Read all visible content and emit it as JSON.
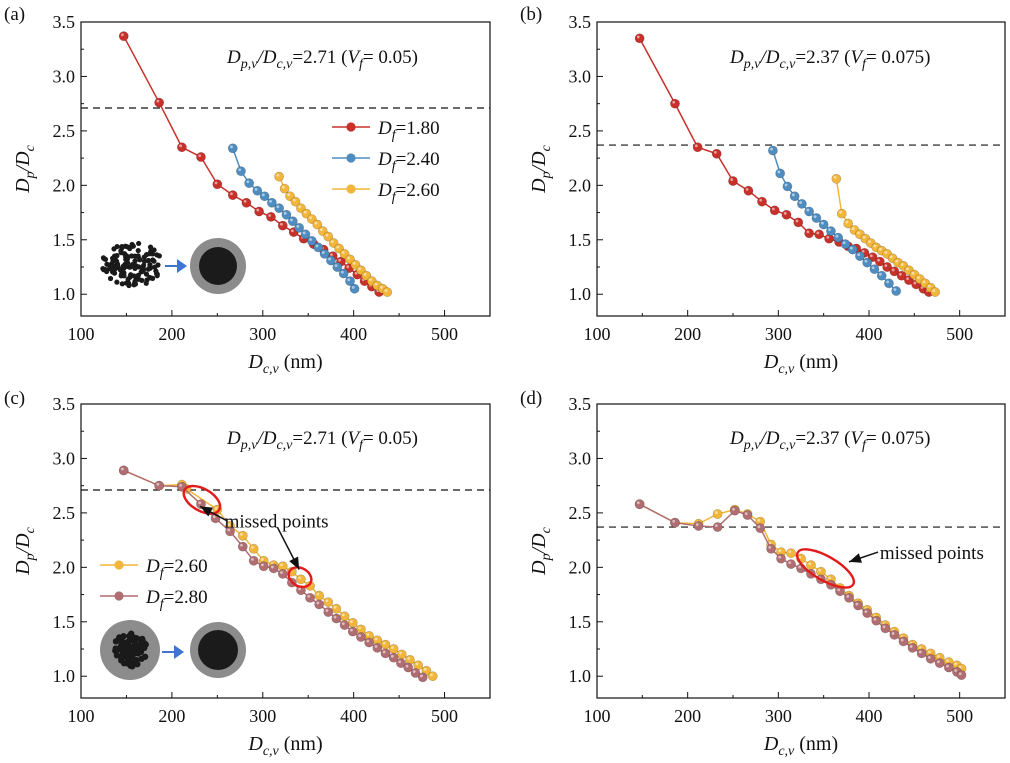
{
  "colors": {
    "Df_1.80": "#c8302a",
    "Df_2.40": "#4f8dc0",
    "Df_2.60": "#f2b63b",
    "Df_2.80": "#b06e72",
    "dashed": "#111111",
    "ellipse": "#e11b1b",
    "arrow_insert": "#3f74d1"
  },
  "chart_data": [
    {
      "panel": "(a)",
      "type": "line",
      "xlabel_main": "D",
      "xlabel_sub": "c,v",
      "xlabel_unit": " (nm)",
      "ylabel_main": "D",
      "ylabel_sub1": "p",
      "ylabel_mid": "/D",
      "ylabel_sub2": "c",
      "xlim": [
        100,
        550
      ],
      "ylim": [
        0.8,
        3.5
      ],
      "xticks": [
        100,
        200,
        300,
        400,
        500
      ],
      "yticks": [
        1.0,
        1.5,
        2.0,
        2.5,
        3.0,
        3.5
      ],
      "ytick_labels": [
        "1.0",
        "1.5",
        "2.0",
        "2.5",
        "3.0",
        "3.5"
      ],
      "hline": 2.71,
      "annotation": {
        "p1": "D",
        "s1": "p,v",
        "p2": "/D",
        "s2": "c,v",
        "p3": "=2.71 (",
        "p4": "V",
        "s3": "f",
        "p5": "= 0.05)"
      },
      "legend": [
        {
          "main": "D",
          "sub": "f",
          "val": "=1.80",
          "color": "#c8302a"
        },
        {
          "main": "D",
          "sub": "f",
          "val": "=2.40",
          "color": "#4f8dc0"
        },
        {
          "main": "D",
          "sub": "f",
          "val": "=2.60",
          "color": "#f2b63b"
        }
      ],
      "insert": "aggregate-to-sphere",
      "series": [
        {
          "name": "Df=1.80",
          "color": "#c8302a",
          "x": [
            147,
            186,
            211,
            232,
            250,
            267,
            282,
            296,
            309,
            322,
            334,
            345,
            356,
            367,
            377,
            386,
            395,
            404,
            412,
            420,
            428
          ],
          "y": [
            3.37,
            2.76,
            2.35,
            2.26,
            2.01,
            1.91,
            1.84,
            1.76,
            1.71,
            1.63,
            1.57,
            1.51,
            1.46,
            1.41,
            1.35,
            1.3,
            1.24,
            1.18,
            1.12,
            1.07,
            1.02
          ]
        },
        {
          "name": "Df=2.40",
          "color": "#4f8dc0",
          "x": [
            267,
            276,
            285,
            294,
            302,
            310,
            318,
            326,
            333,
            340,
            347,
            354,
            361,
            368,
            375,
            382,
            389,
            396,
            401
          ],
          "y": [
            2.34,
            2.13,
            2.02,
            1.95,
            1.9,
            1.84,
            1.79,
            1.73,
            1.67,
            1.61,
            1.55,
            1.49,
            1.43,
            1.37,
            1.31,
            1.25,
            1.19,
            1.12,
            1.05
          ]
        },
        {
          "name": "Df=2.60",
          "color": "#f2b63b",
          "x": [
            318,
            324,
            330,
            336,
            342,
            348,
            354,
            360,
            366,
            372,
            378,
            384,
            390,
            396,
            402,
            408,
            414,
            420,
            426,
            432,
            437
          ],
          "y": [
            2.08,
            1.97,
            1.9,
            1.85,
            1.79,
            1.74,
            1.69,
            1.64,
            1.58,
            1.53,
            1.47,
            1.42,
            1.37,
            1.32,
            1.27,
            1.22,
            1.17,
            1.12,
            1.08,
            1.05,
            1.02
          ]
        }
      ]
    },
    {
      "panel": "(b)",
      "type": "line",
      "xlabel_main": "D",
      "xlabel_sub": "c,v",
      "xlabel_unit": " (nm)",
      "ylabel_main": "D",
      "ylabel_sub1": "p",
      "ylabel_mid": "/D",
      "ylabel_sub2": "c",
      "xlim": [
        100,
        550
      ],
      "ylim": [
        0.8,
        3.5
      ],
      "xticks": [
        100,
        200,
        300,
        400,
        500
      ],
      "yticks": [
        1.0,
        1.5,
        2.0,
        2.5,
        3.0,
        3.5
      ],
      "ytick_labels": [
        "1.0",
        "1.5",
        "2.0",
        "2.5",
        "3.0",
        "3.5"
      ],
      "hline": 2.37,
      "annotation": {
        "p1": "D",
        "s1": "p,v",
        "p2": "/D",
        "s2": "c,v",
        "p3": "=2.37 (",
        "p4": "V",
        "s3": "f",
        "p5": "= 0.075)"
      },
      "legend": [],
      "insert": "",
      "series": [
        {
          "name": "Df=1.80",
          "color": "#c8302a",
          "x": [
            147,
            186,
            211,
            232,
            250,
            267,
            282,
            296,
            309,
            322,
            334,
            345,
            356,
            367,
            377,
            386,
            395,
            404,
            412,
            420,
            428,
            436,
            444,
            452,
            460,
            466
          ],
          "y": [
            3.35,
            2.75,
            2.35,
            2.29,
            2.04,
            1.95,
            1.85,
            1.77,
            1.73,
            1.66,
            1.56,
            1.55,
            1.51,
            1.48,
            1.44,
            1.42,
            1.38,
            1.34,
            1.3,
            1.25,
            1.21,
            1.17,
            1.13,
            1.09,
            1.05,
            1.02
          ]
        },
        {
          "name": "Df=2.40",
          "color": "#4f8dc0",
          "x": [
            294,
            302,
            310,
            318,
            326,
            334,
            342,
            350,
            358,
            366,
            374,
            382,
            390,
            398,
            406,
            414,
            422,
            430
          ],
          "y": [
            2.32,
            2.11,
            1.99,
            1.9,
            1.83,
            1.76,
            1.7,
            1.64,
            1.58,
            1.52,
            1.46,
            1.41,
            1.35,
            1.29,
            1.23,
            1.17,
            1.1,
            1.03
          ]
        },
        {
          "name": "Df=2.60",
          "color": "#f2b63b",
          "x": [
            364,
            370,
            377,
            384,
            390,
            396,
            402,
            408,
            414,
            420,
            426,
            432,
            438,
            444,
            450,
            456,
            462,
            468,
            473
          ],
          "y": [
            2.06,
            1.74,
            1.65,
            1.59,
            1.55,
            1.51,
            1.47,
            1.43,
            1.4,
            1.37,
            1.33,
            1.29,
            1.26,
            1.22,
            1.18,
            1.14,
            1.1,
            1.06,
            1.02
          ]
        }
      ]
    },
    {
      "panel": "(c)",
      "type": "line",
      "xlabel_main": "D",
      "xlabel_sub": "c,v",
      "xlabel_unit": " (nm)",
      "ylabel_main": "D",
      "ylabel_sub1": "p",
      "ylabel_mid": "/D",
      "ylabel_sub2": "c",
      "xlim": [
        100,
        550
      ],
      "ylim": [
        0.8,
        3.5
      ],
      "xticks": [
        100,
        200,
        300,
        400,
        500
      ],
      "yticks": [
        1.0,
        1.5,
        2.0,
        2.5,
        3.0,
        3.5
      ],
      "ytick_labels": [
        "1.0",
        "1.5",
        "2.0",
        "2.5",
        "3.0",
        "3.5"
      ],
      "hline": 2.71,
      "annotation": {
        "p1": "D",
        "s1": "p,v",
        "p2": "/D",
        "s2": "c,v",
        "p3": "=2.71 (",
        "p4": "V",
        "s3": "f",
        "p5": "= 0.05)"
      },
      "legend": [
        {
          "main": "D",
          "sub": "f",
          "val": "=2.60",
          "color": "#f2b63b"
        },
        {
          "main": "D",
          "sub": "f",
          "val": "=2.80",
          "color": "#b06e72"
        }
      ],
      "insert": "coated-to-sphere",
      "missed_label": "missed points",
      "missed_ellipses": [
        {
          "x": 233,
          "y": 2.62,
          "rx": 20,
          "ry": 11,
          "rot": 30
        },
        {
          "x": 341,
          "y": 1.91,
          "rx": 12,
          "ry": 9,
          "rot": 30
        }
      ],
      "missed_arrows": [
        {
          "from": [
            260,
            2.43
          ],
          "to": [
            231,
            2.56
          ]
        },
        {
          "from": [
            316,
            2.37
          ],
          "to": [
            340,
            1.98
          ]
        }
      ],
      "missed_text_pos": [
        258,
        2.43
      ],
      "series": [
        {
          "name": "Df=2.60",
          "color": "#f2b63b",
          "x": [
            147,
            186,
            211,
            216,
            250,
            264,
            278,
            290,
            301,
            312,
            322,
            332,
            342,
            352,
            362,
            372,
            381,
            390,
            399,
            408,
            417,
            426,
            435,
            444,
            453,
            462,
            471,
            480,
            487
          ],
          "y": [
            2.89,
            2.75,
            2.76,
            2.72,
            2.53,
            2.38,
            2.29,
            2.17,
            2.06,
            2.02,
            2.01,
            1.96,
            1.89,
            1.83,
            1.74,
            1.68,
            1.62,
            1.55,
            1.49,
            1.43,
            1.37,
            1.33,
            1.29,
            1.25,
            1.2,
            1.15,
            1.1,
            1.05,
            1.0
          ]
        },
        {
          "name": "Df=2.80",
          "color": "#b06e72",
          "x": [
            147,
            186,
            211,
            232,
            248,
            264,
            278,
            290,
            301,
            312,
            322,
            332,
            342,
            352,
            362,
            372,
            381,
            390,
            399,
            408,
            417,
            426,
            435,
            444,
            452,
            460,
            468,
            476
          ],
          "y": [
            2.89,
            2.75,
            2.74,
            2.58,
            2.45,
            2.33,
            2.19,
            2.06,
            2.01,
            1.99,
            1.94,
            1.86,
            1.79,
            1.72,
            1.66,
            1.59,
            1.53,
            1.47,
            1.41,
            1.36,
            1.31,
            1.26,
            1.21,
            1.17,
            1.12,
            1.08,
            1.03,
            0.99
          ]
        }
      ]
    },
    {
      "panel": "(d)",
      "type": "line",
      "xlabel_main": "D",
      "xlabel_sub": "c,v",
      "xlabel_unit": " (nm)",
      "ylabel_main": "D",
      "ylabel_sub1": "p",
      "ylabel_mid": "/D",
      "ylabel_sub2": "c",
      "xlim": [
        100,
        550
      ],
      "ylim": [
        0.8,
        3.5
      ],
      "xticks": [
        100,
        200,
        300,
        400,
        500
      ],
      "yticks": [
        1.0,
        1.5,
        2.0,
        2.5,
        3.0,
        3.5
      ],
      "ytick_labels": [
        "1.0",
        "1.5",
        "2.0",
        "2.5",
        "3.0",
        "3.5"
      ],
      "hline": 2.37,
      "annotation": {
        "p1": "D",
        "s1": "p,v",
        "p2": "/D",
        "s2": "c,v",
        "p3": "=2.37 (",
        "p4": "V",
        "s3": "f",
        "p5": "= 0.075)"
      },
      "legend": [],
      "insert": "",
      "missed_label": "missed points",
      "missed_ellipses": [
        {
          "x": 352,
          "y": 1.99,
          "rx": 32,
          "ry": 12,
          "rot": 30
        }
      ],
      "missed_arrows": [
        {
          "from": [
            410,
            2.14
          ],
          "to": [
            378,
            2.05
          ]
        }
      ],
      "missed_text_pos": [
        412,
        2.14
      ],
      "series": [
        {
          "name": "Df=2.60",
          "color": "#f2b63b",
          "x": [
            147,
            186,
            212,
            233,
            252,
            266,
            280,
            292,
            303,
            314,
            325,
            336,
            347,
            358,
            368,
            378,
            388,
            398,
            408,
            418,
            428,
            438,
            448,
            458,
            468,
            478,
            488,
            497,
            502
          ],
          "y": [
            2.58,
            2.41,
            2.4,
            2.49,
            2.53,
            2.49,
            2.42,
            2.21,
            2.14,
            2.13,
            2.08,
            2.02,
            1.96,
            1.89,
            1.81,
            1.74,
            1.67,
            1.61,
            1.54,
            1.47,
            1.41,
            1.35,
            1.29,
            1.25,
            1.21,
            1.17,
            1.13,
            1.1,
            1.07
          ]
        },
        {
          "name": "Df=2.80",
          "color": "#b06e72",
          "x": [
            147,
            186,
            212,
            233,
            252,
            266,
            280,
            292,
            303,
            314,
            325,
            336,
            347,
            358,
            368,
            378,
            388,
            398,
            408,
            418,
            428,
            438,
            448,
            458,
            468,
            478,
            488,
            497,
            502
          ],
          "y": [
            2.58,
            2.41,
            2.38,
            2.37,
            2.52,
            2.48,
            2.36,
            2.17,
            2.08,
            2.03,
            1.99,
            1.94,
            1.89,
            1.84,
            1.78,
            1.72,
            1.65,
            1.58,
            1.51,
            1.44,
            1.38,
            1.32,
            1.26,
            1.21,
            1.16,
            1.12,
            1.08,
            1.04,
            1.01
          ]
        }
      ]
    }
  ]
}
